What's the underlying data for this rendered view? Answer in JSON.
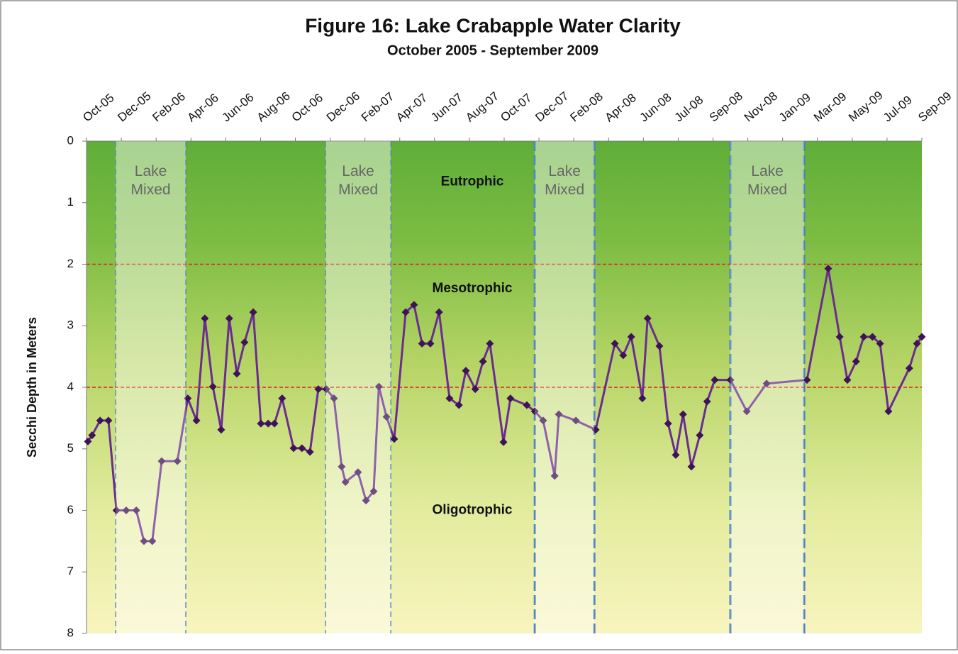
{
  "chart_data": {
    "type": "line",
    "title": "Figure 16:  Lake Crabapple Water Clarity",
    "subtitle": "October 2005 - September 2009",
    "y_label": "Secchi Depth in Meters",
    "xlim": [
      0,
      24
    ],
    "xticks": [
      {
        "value": 0,
        "label": "Oct-05"
      },
      {
        "value": 1,
        "label": "Dec-05"
      },
      {
        "value": 2,
        "label": "Feb-06"
      },
      {
        "value": 3,
        "label": "Apr-06"
      },
      {
        "value": 4,
        "label": "Jun-06"
      },
      {
        "value": 5,
        "label": "Aug-06"
      },
      {
        "value": 6,
        "label": "Oct-06"
      },
      {
        "value": 7,
        "label": "Dec-06"
      },
      {
        "value": 8,
        "label": "Feb-07"
      },
      {
        "value": 9,
        "label": "Apr-07"
      },
      {
        "value": 10,
        "label": "Jun-07"
      },
      {
        "value": 11,
        "label": "Aug-07"
      },
      {
        "value": 12,
        "label": "Oct-07"
      },
      {
        "value": 13,
        "label": "Dec-07"
      },
      {
        "value": 14,
        "label": "Feb-08"
      },
      {
        "value": 15,
        "label": "Apr-08"
      },
      {
        "value": 16,
        "label": "Jun-08"
      },
      {
        "value": 17,
        "label": "Jul-08"
      },
      {
        "value": 18,
        "label": "Sep-08"
      },
      {
        "value": 19,
        "label": "Nov-08"
      },
      {
        "value": 20,
        "label": "Jan-09"
      },
      {
        "value": 21,
        "label": "Mar-09"
      },
      {
        "value": 22,
        "label": "May-09"
      },
      {
        "value": 23,
        "label": "Jul-09"
      },
      {
        "value": 24,
        "label": "Sep-09"
      }
    ],
    "ylim": [
      0,
      8
    ],
    "yticks": [
      0,
      1,
      2,
      3,
      4,
      5,
      6,
      7,
      8
    ],
    "y_inverted": true,
    "zones": [
      {
        "name": "Eutrophic",
        "from": 0,
        "to": 2
      },
      {
        "name": "Mesotrophic",
        "from": 2,
        "to": 4
      },
      {
        "name": "Oligotrophic",
        "from": 4,
        "to": 8
      }
    ],
    "threshold_color": "#e02020",
    "mixed_periods": [
      {
        "start": 0.84,
        "end": 2.85,
        "label": "Lake Mixed"
      },
      {
        "start": 6.87,
        "end": 8.74,
        "label": "Lake Mixed"
      },
      {
        "start": 12.88,
        "end": 14.59,
        "label": "Lake Mixed"
      },
      {
        "start": 18.5,
        "end": 20.62,
        "label": "Lake Mixed"
      }
    ],
    "series": [
      {
        "color": "#6a2c91",
        "x": [
          0.04,
          0.16,
          0.39,
          0.63,
          0.86,
          1.14,
          1.43,
          1.65,
          1.89,
          2.16,
          2.61,
          2.91,
          3.16,
          3.4,
          3.63,
          3.87,
          4.1,
          4.32,
          4.54,
          4.79,
          5.01,
          5.22,
          5.4,
          5.62,
          5.95,
          6.19,
          6.42,
          6.66,
          6.89,
          7.11,
          7.33,
          7.44,
          7.8,
          8.03,
          8.25,
          8.4,
          8.62,
          8.84,
          9.17,
          9.41,
          9.64,
          9.88,
          10.13,
          10.43,
          10.7,
          10.9,
          11.17,
          11.39,
          11.59,
          11.98,
          12.18,
          12.65,
          12.88,
          13.12,
          13.45,
          13.57,
          14.06,
          14.63,
          15.18,
          15.42,
          15.65,
          15.97,
          16.12,
          16.46,
          16.71,
          16.93,
          17.14,
          17.38,
          17.62,
          17.83,
          18.05,
          18.5,
          18.97,
          19.54,
          20.7,
          21.31,
          21.64,
          21.86,
          22.11,
          22.33,
          22.58,
          22.8,
          23.04,
          23.64,
          23.86,
          24.0
        ],
        "values": [
          4.88,
          4.78,
          4.54,
          4.54,
          6.0,
          6.0,
          6.0,
          6.5,
          6.5,
          5.2,
          5.2,
          4.18,
          4.54,
          2.88,
          3.99,
          4.69,
          2.88,
          3.78,
          3.27,
          2.78,
          4.59,
          4.59,
          4.59,
          4.18,
          4.99,
          4.99,
          5.05,
          4.03,
          4.03,
          4.18,
          5.29,
          5.54,
          5.38,
          5.84,
          5.69,
          3.99,
          4.48,
          4.84,
          2.78,
          2.66,
          3.29,
          3.29,
          2.78,
          4.18,
          4.29,
          3.73,
          4.03,
          3.58,
          3.29,
          4.89,
          4.18,
          4.29,
          4.39,
          4.54,
          5.44,
          4.44,
          4.54,
          4.69,
          3.29,
          3.48,
          3.18,
          4.18,
          2.88,
          3.33,
          4.59,
          5.1,
          4.44,
          5.29,
          4.78,
          4.23,
          3.88,
          3.88,
          4.39,
          3.94,
          3.88,
          2.07,
          3.18,
          3.88,
          3.58,
          3.18,
          3.18,
          3.29,
          4.39,
          3.69,
          3.29,
          3.18
        ]
      }
    ]
  }
}
